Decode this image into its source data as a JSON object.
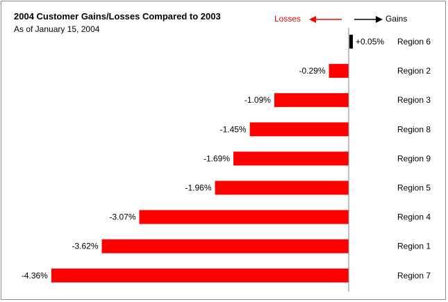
{
  "chart_data": {
    "type": "bar",
    "orientation": "horizontal",
    "title": "2004 Customer Gains/Losses Compared to 2003",
    "subtitle": "As of January 15, 2004",
    "legend": {
      "losses_label": "Losses",
      "gains_label": "Gains",
      "losses_color": "#ff0000",
      "gains_color": "#000000",
      "placement": "top-right"
    },
    "categories": [
      "Region 6",
      "Region 2",
      "Region 3",
      "Region 8",
      "Region 9",
      "Region 5",
      "Region 4",
      "Region 1",
      "Region 7"
    ],
    "values": [
      0.05,
      -0.29,
      -1.09,
      -1.45,
      -1.69,
      -1.96,
      -3.07,
      -3.62,
      -4.36
    ],
    "value_labels": [
      "+0.05%",
      "-0.29%",
      "-1.09%",
      "-1.45%",
      "-1.69%",
      "-1.96%",
      "-3.07%",
      "-3.62%",
      "-4.36%"
    ],
    "unit": "%",
    "xlim": [
      -4.5,
      1.3
    ],
    "grid": false
  }
}
